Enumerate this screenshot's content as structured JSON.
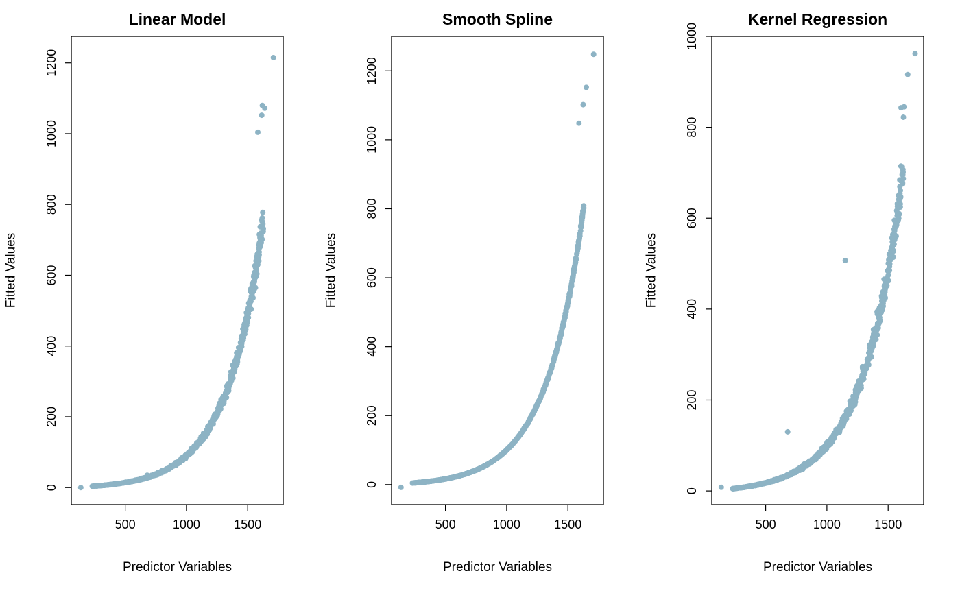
{
  "style": {
    "point_color": "#8db3c4"
  },
  "chart_data": [
    {
      "type": "scatter",
      "title": "Linear Model",
      "xlabel": "Predictor Variables",
      "ylabel": "Fitted Values",
      "xlim": [
        60,
        1790
      ],
      "ylim": [
        -48,
        1275
      ],
      "xticks": [
        500,
        1000,
        1500
      ],
      "yticks": [
        0,
        200,
        400,
        600,
        800,
        1000,
        1200
      ],
      "grid": false,
      "curve": {
        "formula": "exponential",
        "a": 3.3,
        "k": 0.00334,
        "x_start": 130,
        "x_end": 1710,
        "jitter": 0.055
      },
      "points": [
        [
          137,
          0
        ],
        [
          680,
          35
        ],
        [
          1710,
          1215
        ],
        [
          1620,
          1080
        ],
        [
          1640,
          1072
        ],
        [
          1615,
          1052
        ],
        [
          1583,
          1004
        ]
      ]
    },
    {
      "type": "scatter",
      "title": "Smooth Spline",
      "xlabel": "Predictor Variables",
      "ylabel": "Fitted Values",
      "xlim": [
        60,
        1790
      ],
      "ylim": [
        -58,
        1300
      ],
      "xticks": [
        500,
        1000,
        1500
      ],
      "yticks": [
        0,
        200,
        400,
        600,
        800,
        1000,
        1200
      ],
      "grid": false,
      "curve": {
        "formula": "exponential",
        "a": 4.0,
        "k": 0.00326,
        "x_start": 130,
        "x_end": 1710,
        "jitter": 0.01
      },
      "points": [
        [
          137,
          -8
        ],
        [
          1710,
          1248
        ],
        [
          1650,
          1152
        ],
        [
          1625,
          1102
        ],
        [
          1590,
          1048
        ]
      ]
    },
    {
      "type": "scatter",
      "title": "Kernel Regression",
      "xlabel": "Predictor Variables",
      "ylabel": "Fitted Values",
      "xlim": [
        60,
        1790
      ],
      "ylim": [
        -30,
        1000
      ],
      "xticks": [
        500,
        1000,
        1500
      ],
      "yticks": [
        0,
        200,
        400,
        600,
        800,
        1000
      ],
      "grid": false,
      "curve": {
        "formula": "exponential",
        "a": 4.8,
        "k": 0.00308,
        "x_start": 130,
        "x_end": 1710,
        "jitter": 0.06
      },
      "points": [
        [
          137,
          8
        ],
        [
          680,
          130
        ],
        [
          1150,
          507
        ],
        [
          1720,
          962
        ],
        [
          1660,
          916
        ],
        [
          1630,
          845
        ],
        [
          1605,
          843
        ],
        [
          1625,
          822
        ]
      ]
    }
  ]
}
